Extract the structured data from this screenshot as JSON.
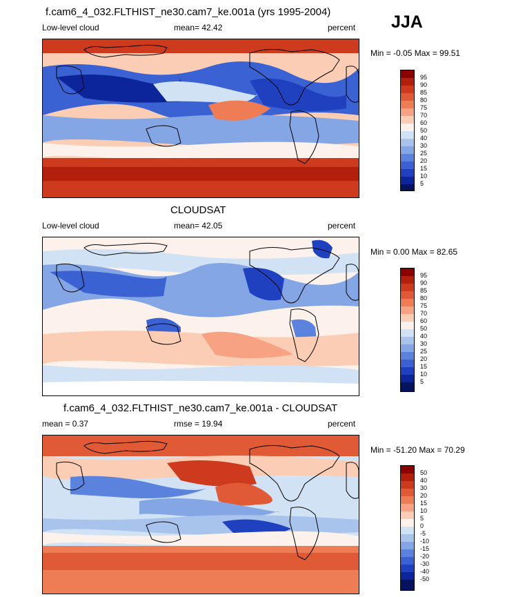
{
  "season": "JJA",
  "panels": [
    {
      "title": "f.cam6_4_032.FLTHIST_ne30.cam7_ke.001a (yrs 1995-2004)",
      "left_label": "Low-level cloud",
      "center_label": "mean=  42.42",
      "right_label": "percent",
      "minmax": "Min =  -0.05 Max =  99.51",
      "colorbar_labels": [
        "95",
        "90",
        "85",
        "80",
        "75",
        "70",
        "60",
        "50",
        "40",
        "30",
        "25",
        "20",
        "15",
        "10",
        "5"
      ],
      "colors": [
        "#8b0000",
        "#b2200c",
        "#cd3a1d",
        "#e05a35",
        "#ee7c55",
        "#f6a283",
        "#fbcdb4",
        "#fdf2eb",
        "#d2e2f5",
        "#a9c4ec",
        "#84a6e4",
        "#5b82dc",
        "#3a62d3",
        "#1f41c0",
        "#0d259a",
        "#03135e"
      ]
    },
    {
      "title": "CLOUDSAT",
      "left_label": "Low-level cloud",
      "center_label": "mean=  42.05",
      "right_label": "percent",
      "minmax": "Min =   0.00 Max =  82.65",
      "colorbar_labels": [
        "95",
        "90",
        "85",
        "80",
        "75",
        "70",
        "60",
        "50",
        "40",
        "30",
        "25",
        "20",
        "15",
        "10",
        "5"
      ],
      "colors": [
        "#8b0000",
        "#b2200c",
        "#cd3a1d",
        "#e05a35",
        "#ee7c55",
        "#f6a283",
        "#fbcdb4",
        "#fdf2eb",
        "#d2e2f5",
        "#a9c4ec",
        "#84a6e4",
        "#5b82dc",
        "#3a62d3",
        "#1f41c0",
        "#0d259a",
        "#03135e"
      ]
    },
    {
      "title": "f.cam6_4_032.FLTHIST_ne30.cam7_ke.001a - CLOUDSAT",
      "left_label": "mean =   0.37",
      "center_label": "rmse =  19.94",
      "right_label": "percent",
      "minmax": "Min = -51.20 Max =  70.29",
      "colorbar_labels": [
        "50",
        "40",
        "30",
        "20",
        "15",
        "10",
        "5",
        "0",
        "-5",
        "-10",
        "-15",
        "-20",
        "-30",
        "-40",
        "-50"
      ],
      "colors": [
        "#8b0000",
        "#b2200c",
        "#cd3a1d",
        "#e05a35",
        "#ee7c55",
        "#f6a283",
        "#fbcdb4",
        "#fdf2eb",
        "#d2e2f5",
        "#a9c4ec",
        "#84a6e4",
        "#5b82dc",
        "#3a62d3",
        "#1f41c0",
        "#0d259a",
        "#03135e"
      ]
    }
  ]
}
